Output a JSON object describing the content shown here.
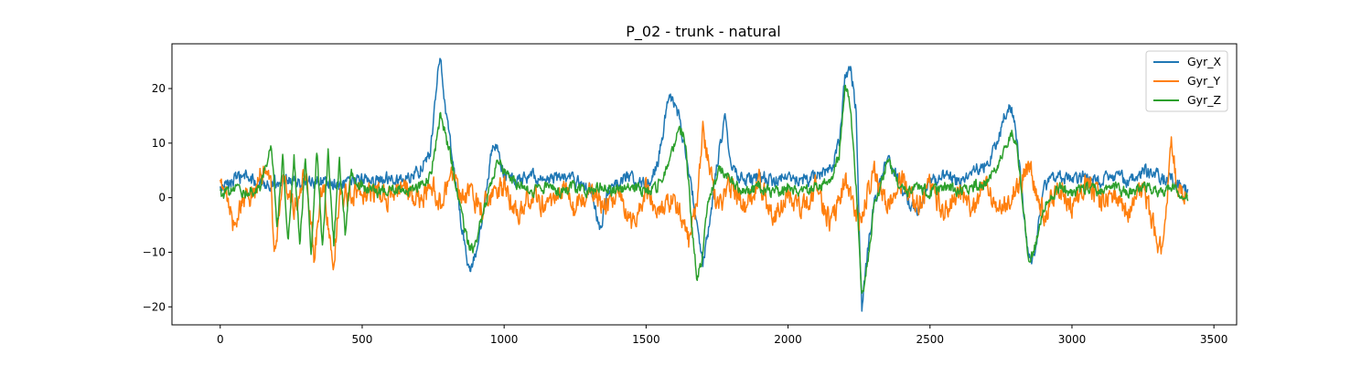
{
  "chart_data": {
    "type": "line",
    "title": "P_02 - trunk - natural",
    "xlabel": "",
    "ylabel": "",
    "xlim": [
      -170,
      3580
    ],
    "ylim": [
      -23.3,
      28.2
    ],
    "xticks": [
      0,
      500,
      1000,
      1500,
      2000,
      2500,
      3000,
      3500
    ],
    "yticks": [
      -20,
      -10,
      0,
      10,
      20
    ],
    "grid": false,
    "legend_position": "top-right",
    "n_samples": 3410,
    "series": [
      {
        "name": "Gyr_X",
        "color": "#1f77b4",
        "keypoints": [
          [
            0,
            1.5
          ],
          [
            40,
            3
          ],
          [
            80,
            4
          ],
          [
            120,
            3
          ],
          [
            180,
            2.5
          ],
          [
            240,
            3.5
          ],
          [
            300,
            2.5
          ],
          [
            360,
            3
          ],
          [
            420,
            2
          ],
          [
            470,
            3
          ],
          [
            500,
            3.5
          ],
          [
            560,
            3
          ],
          [
            600,
            4
          ],
          [
            650,
            3
          ],
          [
            700,
            5
          ],
          [
            740,
            8
          ],
          [
            760,
            20
          ],
          [
            770,
            24
          ],
          [
            775,
            25.8
          ],
          [
            790,
            18
          ],
          [
            810,
            10
          ],
          [
            830,
            3
          ],
          [
            850,
            -5
          ],
          [
            870,
            -12
          ],
          [
            880,
            -13.5
          ],
          [
            900,
            -10
          ],
          [
            920,
            -5
          ],
          [
            940,
            2
          ],
          [
            960,
            10
          ],
          [
            980,
            8
          ],
          [
            1000,
            4
          ],
          [
            1050,
            3
          ],
          [
            1100,
            4
          ],
          [
            1150,
            3
          ],
          [
            1200,
            4
          ],
          [
            1250,
            3
          ],
          [
            1300,
            2
          ],
          [
            1340,
            -6
          ],
          [
            1360,
            1
          ],
          [
            1400,
            3
          ],
          [
            1450,
            4
          ],
          [
            1500,
            2
          ],
          [
            1540,
            6
          ],
          [
            1560,
            12
          ],
          [
            1580,
            19.5
          ],
          [
            1600,
            17
          ],
          [
            1620,
            14
          ],
          [
            1640,
            8
          ],
          [
            1660,
            2
          ],
          [
            1680,
            -5
          ],
          [
            1700,
            -12
          ],
          [
            1720,
            -6
          ],
          [
            1740,
            2
          ],
          [
            1760,
            10
          ],
          [
            1780,
            15
          ],
          [
            1800,
            5
          ],
          [
            1850,
            3
          ],
          [
            1900,
            4
          ],
          [
            1950,
            3
          ],
          [
            2000,
            4
          ],
          [
            2050,
            3
          ],
          [
            2100,
            4
          ],
          [
            2150,
            5
          ],
          [
            2180,
            10
          ],
          [
            2200,
            22
          ],
          [
            2220,
            24
          ],
          [
            2240,
            16
          ],
          [
            2250,
            -5
          ],
          [
            2260,
            -20.5
          ],
          [
            2280,
            -10
          ],
          [
            2300,
            -2
          ],
          [
            2330,
            4
          ],
          [
            2350,
            8
          ],
          [
            2370,
            5
          ],
          [
            2400,
            2
          ],
          [
            2450,
            -3
          ],
          [
            2500,
            3
          ],
          [
            2550,
            4
          ],
          [
            2600,
            3
          ],
          [
            2650,
            5
          ],
          [
            2700,
            6
          ],
          [
            2740,
            10
          ],
          [
            2760,
            15
          ],
          [
            2780,
            17
          ],
          [
            2800,
            14
          ],
          [
            2820,
            3
          ],
          [
            2840,
            -8
          ],
          [
            2860,
            -12
          ],
          [
            2880,
            -6
          ],
          [
            2900,
            2
          ],
          [
            2950,
            4
          ],
          [
            3000,
            3
          ],
          [
            3050,
            4
          ],
          [
            3100,
            3
          ],
          [
            3150,
            4
          ],
          [
            3200,
            3
          ],
          [
            3250,
            5
          ],
          [
            3300,
            4
          ],
          [
            3350,
            3
          ],
          [
            3400,
            1.5
          ]
        ]
      },
      {
        "name": "Gyr_Y",
        "color": "#ff7f0e",
        "keypoints": [
          [
            0,
            2
          ],
          [
            30,
            0
          ],
          [
            50,
            -6
          ],
          [
            80,
            0
          ],
          [
            120,
            1
          ],
          [
            150,
            5
          ],
          [
            180,
            2
          ],
          [
            190,
            -12
          ],
          [
            220,
            4
          ],
          [
            260,
            -2
          ],
          [
            300,
            5
          ],
          [
            330,
            -11
          ],
          [
            360,
            3
          ],
          [
            400,
            -11
          ],
          [
            420,
            0
          ],
          [
            470,
            1
          ],
          [
            500,
            0.5
          ],
          [
            550,
            1
          ],
          [
            600,
            0
          ],
          [
            650,
            2
          ],
          [
            700,
            -1
          ],
          [
            750,
            2
          ],
          [
            780,
            -2
          ],
          [
            810,
            5
          ],
          [
            850,
            -1
          ],
          [
            880,
            1
          ],
          [
            920,
            -2
          ],
          [
            960,
            0
          ],
          [
            1000,
            2
          ],
          [
            1050,
            -3
          ],
          [
            1100,
            1
          ],
          [
            1150,
            -2
          ],
          [
            1200,
            2
          ],
          [
            1250,
            -3
          ],
          [
            1300,
            1
          ],
          [
            1350,
            -2
          ],
          [
            1400,
            0
          ],
          [
            1450,
            -5
          ],
          [
            1500,
            2
          ],
          [
            1550,
            -3
          ],
          [
            1600,
            0
          ],
          [
            1650,
            -8
          ],
          [
            1680,
            0
          ],
          [
            1700,
            12
          ],
          [
            1750,
            -2
          ],
          [
            1800,
            2
          ],
          [
            1850,
            -1
          ],
          [
            1900,
            3
          ],
          [
            1950,
            -4
          ],
          [
            2000,
            1
          ],
          [
            2050,
            -2
          ],
          [
            2100,
            2
          ],
          [
            2150,
            -5
          ],
          [
            2200,
            3
          ],
          [
            2250,
            -4
          ],
          [
            2300,
            5
          ],
          [
            2350,
            -2
          ],
          [
            2400,
            3
          ],
          [
            2450,
            -2
          ],
          [
            2500,
            2
          ],
          [
            2550,
            -3
          ],
          [
            2600,
            1
          ],
          [
            2650,
            -2
          ],
          [
            2700,
            2
          ],
          [
            2750,
            -3
          ],
          [
            2800,
            1
          ],
          [
            2850,
            6
          ],
          [
            2900,
            -3
          ],
          [
            2950,
            2
          ],
          [
            3000,
            -2
          ],
          [
            3050,
            3
          ],
          [
            3100,
            -1
          ],
          [
            3150,
            1
          ],
          [
            3200,
            -3
          ],
          [
            3250,
            2
          ],
          [
            3300,
            -8
          ],
          [
            3320,
            -10
          ],
          [
            3340,
            4
          ],
          [
            3350,
            11
          ],
          [
            3370,
            2
          ],
          [
            3400,
            1
          ]
        ]
      },
      {
        "name": "Gyr_Z",
        "color": "#2ca02c",
        "keypoints": [
          [
            0,
            0.5
          ],
          [
            50,
            1.5
          ],
          [
            100,
            1
          ],
          [
            140,
            2
          ],
          [
            180,
            10
          ],
          [
            200,
            -6
          ],
          [
            220,
            7
          ],
          [
            240,
            -8
          ],
          [
            260,
            7
          ],
          [
            280,
            -9
          ],
          [
            300,
            8
          ],
          [
            320,
            -10
          ],
          [
            340,
            9
          ],
          [
            360,
            -9
          ],
          [
            380,
            8
          ],
          [
            400,
            -8
          ],
          [
            420,
            7
          ],
          [
            440,
            -6
          ],
          [
            460,
            5
          ],
          [
            480,
            2
          ],
          [
            500,
            2
          ],
          [
            550,
            1
          ],
          [
            600,
            2
          ],
          [
            650,
            1
          ],
          [
            700,
            2
          ],
          [
            740,
            4
          ],
          [
            760,
            10
          ],
          [
            775,
            15
          ],
          [
            790,
            12
          ],
          [
            810,
            8
          ],
          [
            830,
            2
          ],
          [
            850,
            -3
          ],
          [
            870,
            -8
          ],
          [
            890,
            -10
          ],
          [
            920,
            -4
          ],
          [
            950,
            2
          ],
          [
            980,
            7
          ],
          [
            1000,
            5
          ],
          [
            1050,
            2
          ],
          [
            1100,
            1
          ],
          [
            1150,
            2
          ],
          [
            1200,
            1
          ],
          [
            1250,
            2
          ],
          [
            1300,
            1
          ],
          [
            1350,
            2
          ],
          [
            1400,
            1
          ],
          [
            1450,
            2
          ],
          [
            1500,
            1
          ],
          [
            1540,
            2
          ],
          [
            1580,
            6
          ],
          [
            1620,
            13
          ],
          [
            1640,
            10
          ],
          [
            1660,
            -5
          ],
          [
            1680,
            -15
          ],
          [
            1700,
            -10
          ],
          [
            1720,
            0
          ],
          [
            1760,
            5
          ],
          [
            1800,
            3
          ],
          [
            1850,
            1
          ],
          [
            1900,
            2
          ],
          [
            1950,
            1
          ],
          [
            2000,
            2
          ],
          [
            2050,
            1
          ],
          [
            2100,
            2
          ],
          [
            2150,
            3
          ],
          [
            2180,
            8
          ],
          [
            2200,
            20.5
          ],
          [
            2220,
            17
          ],
          [
            2240,
            2
          ],
          [
            2260,
            -18
          ],
          [
            2280,
            -12
          ],
          [
            2300,
            -3
          ],
          [
            2330,
            3
          ],
          [
            2350,
            7
          ],
          [
            2380,
            3
          ],
          [
            2420,
            1
          ],
          [
            2450,
            2
          ],
          [
            2500,
            1
          ],
          [
            2550,
            2
          ],
          [
            2600,
            1
          ],
          [
            2650,
            2
          ],
          [
            2700,
            3
          ],
          [
            2740,
            6
          ],
          [
            2770,
            10
          ],
          [
            2790,
            12
          ],
          [
            2810,
            8
          ],
          [
            2830,
            -3
          ],
          [
            2850,
            -12
          ],
          [
            2870,
            -9
          ],
          [
            2900,
            -2
          ],
          [
            2950,
            2
          ],
          [
            3000,
            1
          ],
          [
            3050,
            2
          ],
          [
            3100,
            1
          ],
          [
            3150,
            2
          ],
          [
            3200,
            1
          ],
          [
            3250,
            2
          ],
          [
            3300,
            1
          ],
          [
            3350,
            2
          ],
          [
            3400,
            0
          ]
        ]
      }
    ]
  }
}
